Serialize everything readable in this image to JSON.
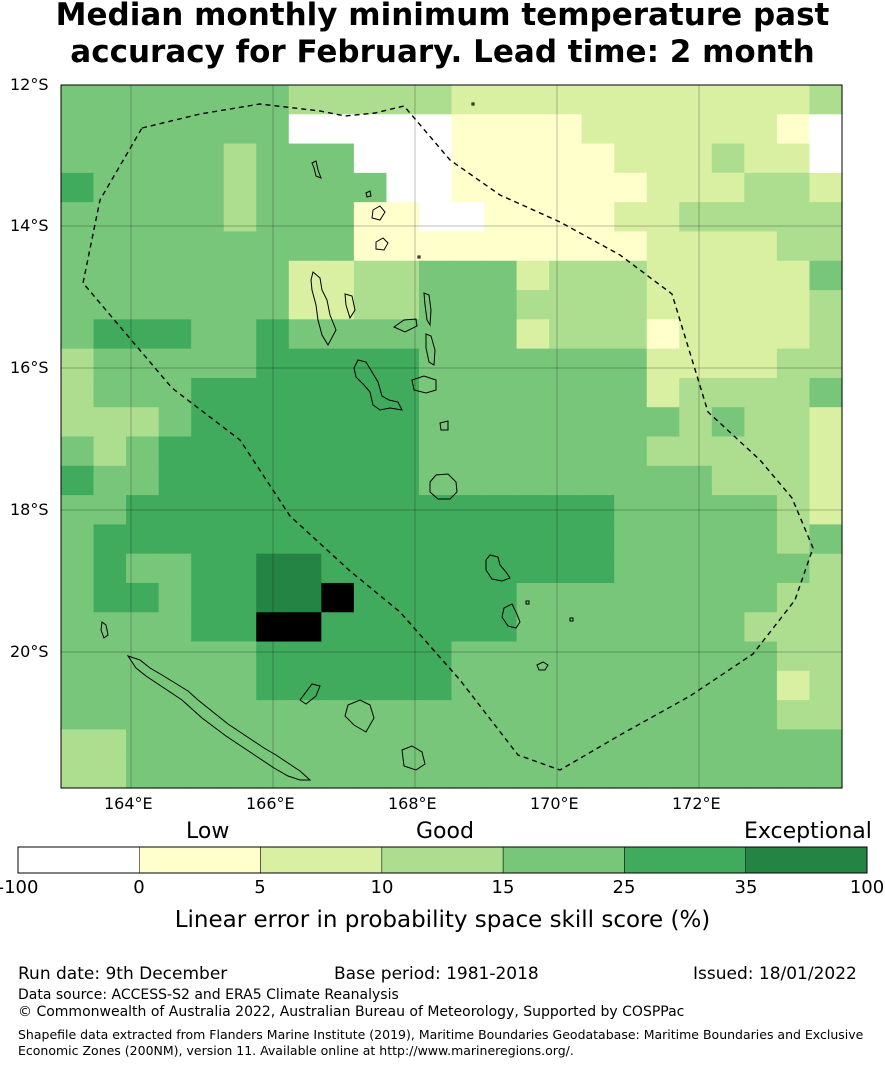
{
  "title": {
    "line1": "Median monthly minimum temperature past",
    "line2": "accuracy for February. Lead time: 2 month"
  },
  "map": {
    "lat_labels": [
      "12°S",
      "14°S",
      "16°S",
      "18°S",
      "20°S"
    ],
    "lon_labels": [
      "164°E",
      "166°E",
      "168°E",
      "170°E",
      "172°E"
    ]
  },
  "colorbar": {
    "categories": {
      "low": "Low",
      "good": "Good",
      "exceptional": "Exceptional"
    },
    "ticks": [
      "-100",
      "0",
      "5",
      "10",
      "15",
      "25",
      "35",
      "100"
    ],
    "colors": [
      "#ffffff",
      "#ffffcc",
      "#d9f0a3",
      "#addd8e",
      "#78c679",
      "#41ab5d",
      "#238443"
    ],
    "title": "Linear error in probability space skill score (%)"
  },
  "footer": {
    "run_date": "Run date: 9th December",
    "base_period": "Base period: 1981-2018",
    "issued": "Issued: 18/01/2022",
    "data_source": "Data source: ACCESS-S2 and ERA5 Climate Reanalysis",
    "copyright": "© Commonwealth of Australia 2022, Australian Bureau of Meteorology, Supported by COSPPac",
    "shapefile_line1": "Shapefile data extracted from Flanders Marine Institute (2019), Maritime Boundaries Geodatabase: Maritime Boundaries and Exclusive",
    "shapefile_line2": "Economic Zones (200NM), version 11. Available online at http://www.marineregions.org/."
  }
}
